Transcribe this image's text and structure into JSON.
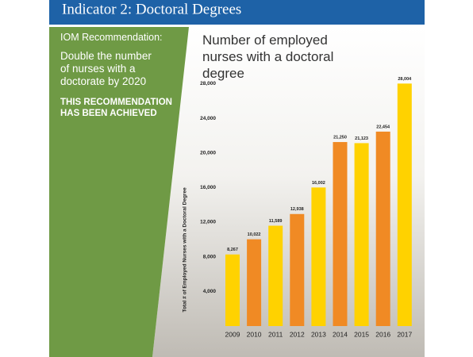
{
  "header": {
    "title": "Indicator 2: Doctoral Degrees"
  },
  "panel": {
    "label": "IOM Recommendation:",
    "goal": "Double the number of nurses with a doctorate by 2020",
    "status": "THIS RECOMMENDATION HAS BEEN ACHIEVED"
  },
  "chart_data": {
    "type": "bar",
    "title": "Number of employed nurses with a doctoral degree",
    "y_label": "Total # of Employed Nurses with a Doctoral Degree",
    "categories": [
      "2009",
      "2010",
      "2011",
      "2012",
      "2013",
      "2014",
      "2015",
      "2016",
      "2017"
    ],
    "values": [
      8267,
      10022,
      11589,
      12938,
      16002,
      21250,
      21123,
      22454,
      28004
    ],
    "value_labels": [
      "8,267",
      "10,022",
      "11,589",
      "12,938",
      "16,002",
      "21,250",
      "21,123",
      "22,454",
      "28,004"
    ],
    "colors": [
      "#ffd200",
      "#f08a24"
    ],
    "ylim": [
      0,
      29500
    ],
    "yticks": [
      {
        "value": 4000,
        "label": "4,000"
      },
      {
        "value": 8000,
        "label": "8,000"
      },
      {
        "value": 12000,
        "label": "12,000"
      },
      {
        "value": 16000,
        "label": "16,000"
      },
      {
        "value": 20000,
        "label": "20,000"
      },
      {
        "value": 24000,
        "label": "24,000"
      },
      {
        "value": 28000,
        "label": "28,000"
      }
    ],
    "grid": false
  }
}
